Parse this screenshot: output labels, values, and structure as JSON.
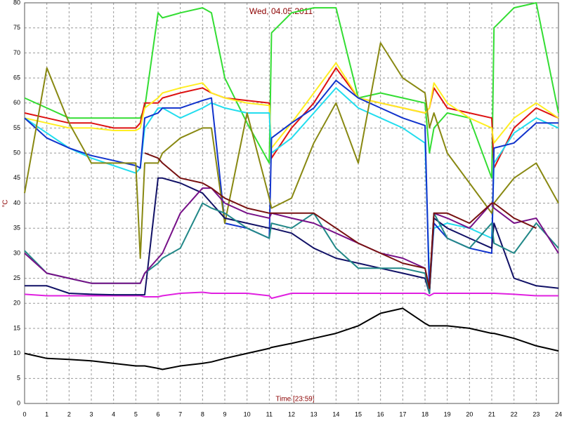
{
  "chart_data": {
    "type": "line",
    "title": "Wed, 04.05.2011",
    "xlabel": "Time [23:59]",
    "ylabel": "°C",
    "x": [
      0,
      1,
      2,
      3,
      4,
      5,
      5.2,
      5.4,
      6,
      6.2,
      7,
      8,
      8.4,
      9,
      10,
      11,
      11.1,
      12,
      13,
      14,
      15,
      16,
      17,
      18,
      18.2,
      18.4,
      19,
      20,
      21,
      21.1,
      22,
      23,
      24
    ],
    "xlim": [
      0,
      24
    ],
    "xticks": [
      0,
      1,
      2,
      3,
      4,
      5,
      6,
      7,
      8,
      9,
      10,
      11,
      12,
      13,
      14,
      15,
      16,
      17,
      18,
      19,
      20,
      21,
      22,
      23,
      24
    ],
    "ylim": [
      0,
      80
    ],
    "yticks": [
      0,
      5,
      10,
      15,
      20,
      25,
      30,
      35,
      40,
      45,
      50,
      55,
      60,
      65,
      70,
      75,
      80
    ],
    "grid": true,
    "series": [
      {
        "color": "#000000",
        "values": [
          10,
          9,
          8.8,
          8.5,
          8,
          7.5,
          7.5,
          7.5,
          7,
          6.8,
          7.5,
          8,
          8.3,
          9,
          10,
          11,
          11.2,
          12,
          13,
          14,
          15.5,
          18,
          19,
          16,
          15.5,
          15.5,
          15.5,
          15,
          14,
          14,
          13,
          11.5,
          10.5
        ]
      },
      {
        "color": "#e020e0",
        "values": [
          21.8,
          21.5,
          21.5,
          21.5,
          21.5,
          21.5,
          21.5,
          21.3,
          21.3,
          21.5,
          22,
          22.2,
          22,
          22,
          22,
          21.5,
          21,
          22,
          22,
          22,
          22,
          22,
          22,
          22,
          21.5,
          22,
          22,
          22,
          22,
          22,
          21.8,
          21.5,
          21.5
        ]
      },
      {
        "color": "#33dd33",
        "values": [
          61,
          59,
          57,
          57,
          57,
          57,
          57,
          59,
          78,
          77,
          78,
          79,
          78,
          65,
          56,
          48,
          74,
          78,
          79,
          79,
          61,
          62,
          61,
          60,
          50,
          55,
          58,
          57,
          45,
          75,
          79,
          80,
          58
        ]
      },
      {
        "color": "#dd1111",
        "values": [
          58,
          57,
          56,
          56,
          55,
          55,
          56,
          60,
          60,
          61,
          62,
          63,
          62,
          61,
          60.5,
          60,
          49,
          55,
          60,
          67,
          61,
          60,
          59,
          58,
          59,
          63,
          59,
          58,
          57,
          47,
          55,
          59,
          57
        ]
      },
      {
        "color": "#ffee22",
        "values": [
          57,
          56,
          55,
          55,
          54.5,
          54.5,
          55,
          59,
          61,
          62,
          63,
          64,
          62,
          61,
          60,
          59.5,
          51,
          56,
          62,
          68,
          61,
          60,
          59,
          58,
          59,
          64,
          60,
          57,
          55,
          52,
          57,
          60,
          57
        ]
      },
      {
        "color": "#22ddee",
        "values": [
          57,
          54,
          51,
          49,
          47.5,
          46,
          47,
          55,
          59,
          59,
          57,
          59,
          60,
          59,
          58,
          58,
          50,
          53,
          58,
          63,
          59,
          57,
          55,
          52,
          25,
          35,
          36,
          35,
          33,
          48,
          54,
          57,
          55
        ]
      },
      {
        "color": "#1133cc",
        "values": [
          57,
          53,
          51,
          49.5,
          48.5,
          47.5,
          47,
          57,
          58,
          59,
          59,
          60.5,
          61,
          36,
          35,
          33,
          53,
          56,
          59,
          64.5,
          61,
          59,
          57,
          55.5,
          22,
          36,
          33,
          31,
          30,
          51,
          52,
          56,
          56
        ]
      },
      {
        "color": "#888811",
        "values": [
          42,
          67,
          56,
          48,
          48,
          48,
          29,
          48,
          48,
          50,
          53,
          55,
          55,
          36,
          58,
          41,
          39,
          41,
          52,
          60,
          48,
          72,
          65,
          62,
          55,
          58,
          50,
          44,
          38,
          40,
          45,
          48,
          40
        ]
      },
      {
        "color": "#111166",
        "values": [
          23.5,
          23.5,
          22,
          21.8,
          21.7,
          21.7,
          21.7,
          21.7,
          45,
          45,
          44,
          42,
          40,
          37,
          36,
          35,
          35,
          34,
          31,
          29,
          28,
          27,
          26,
          25,
          22,
          37,
          35,
          33,
          31,
          36,
          25,
          23.5,
          23
        ]
      },
      {
        "color": "#228888",
        "values": [
          30.5,
          26,
          25,
          24,
          24,
          24,
          24,
          26,
          28,
          29,
          31,
          40,
          39,
          38,
          35,
          33,
          36,
          35,
          38,
          31,
          27,
          27,
          27,
          26,
          22,
          38,
          33,
          31,
          36,
          32,
          30,
          36,
          31
        ]
      },
      {
        "color": "#771188",
        "values": [
          30,
          26,
          25,
          24,
          24,
          24,
          24,
          26,
          29,
          30,
          38,
          43,
          43,
          40,
          38,
          37,
          38,
          37,
          36,
          34,
          32,
          30,
          29,
          27,
          23,
          38,
          37,
          35,
          40,
          39,
          36,
          37,
          30
        ]
      },
      {
        "color": "#771111",
        "values": [
          null,
          null,
          null,
          null,
          null,
          null,
          null,
          50,
          49,
          48,
          45,
          44,
          43,
          41,
          39,
          38,
          38,
          38,
          38,
          35,
          32,
          30,
          28,
          27,
          23,
          38,
          38,
          36,
          40,
          40,
          37,
          35,
          null
        ]
      }
    ]
  }
}
